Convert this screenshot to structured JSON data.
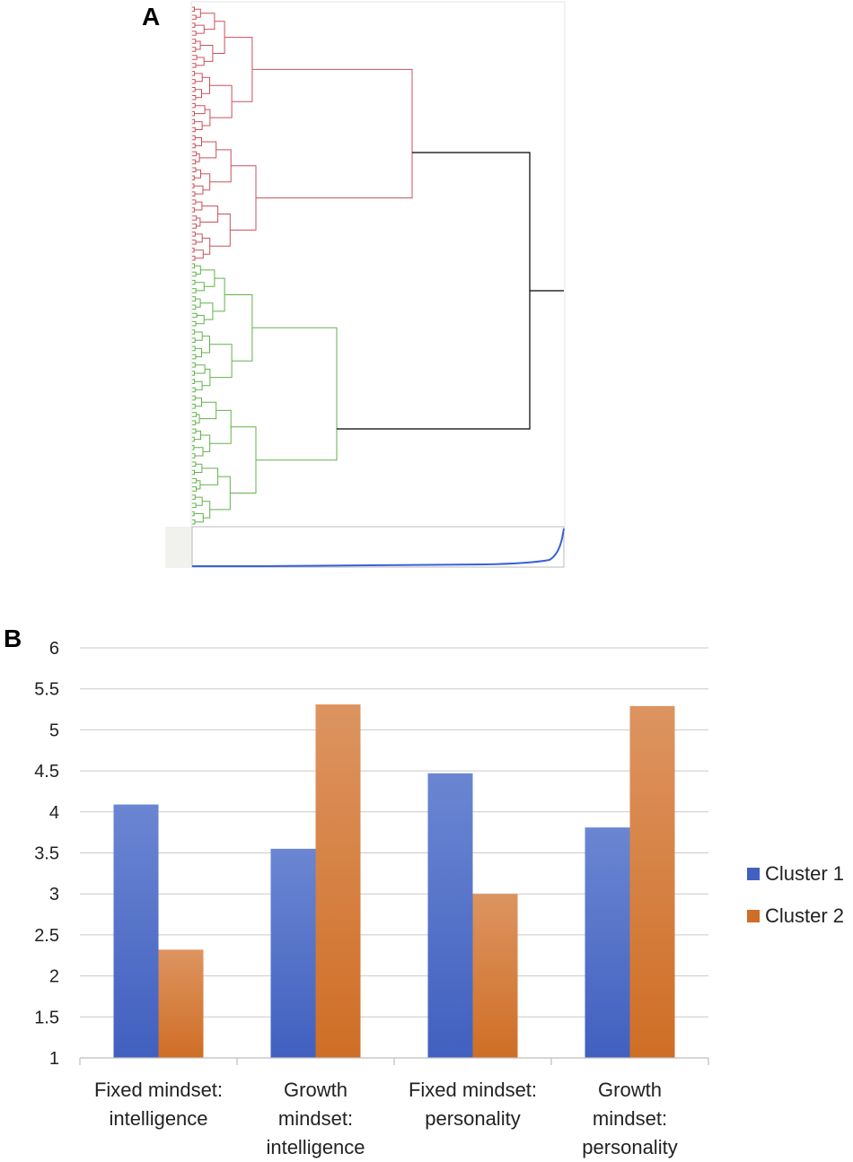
{
  "panels": {
    "a_label": "A",
    "b_label": "B"
  },
  "colors": {
    "cluster1_branch": "#c9505e",
    "cluster2_branch": "#62b24a",
    "root_branch": "#000000",
    "distance_curve": "#3a5fd8",
    "series1_top": "#6a86d2",
    "series1_bottom": "#4160bf",
    "series2_top": "#dd9460",
    "series2_bottom": "#cf6e26"
  },
  "dendrogram": {
    "clusters": [
      {
        "name": "Cluster 1",
        "color": "#c9505e"
      },
      {
        "name": "Cluster 2",
        "color": "#62b24a"
      }
    ]
  },
  "chart_data": {
    "type": "bar",
    "categories": [
      [
        "Fixed mindset:",
        "intelligence"
      ],
      [
        "Growth",
        "mindset:",
        "intelligence"
      ],
      [
        "Fixed mindset:",
        "personality"
      ],
      [
        "Growth",
        "mindset:",
        "personality"
      ]
    ],
    "series": [
      {
        "name": "Cluster 1",
        "values": [
          4.09,
          3.55,
          4.47,
          3.81
        ]
      },
      {
        "name": "Cluster 2",
        "values": [
          2.32,
          5.31,
          3.0,
          5.29
        ]
      }
    ],
    "ylim": [
      1,
      6
    ],
    "yticks": [
      "1",
      "1.5",
      "2",
      "2.5",
      "3",
      "3.5",
      "4",
      "4.5",
      "5",
      "5.5",
      "6"
    ],
    "legend_position": "right",
    "grid": true,
    "title": "",
    "xlabel": "",
    "ylabel": ""
  }
}
